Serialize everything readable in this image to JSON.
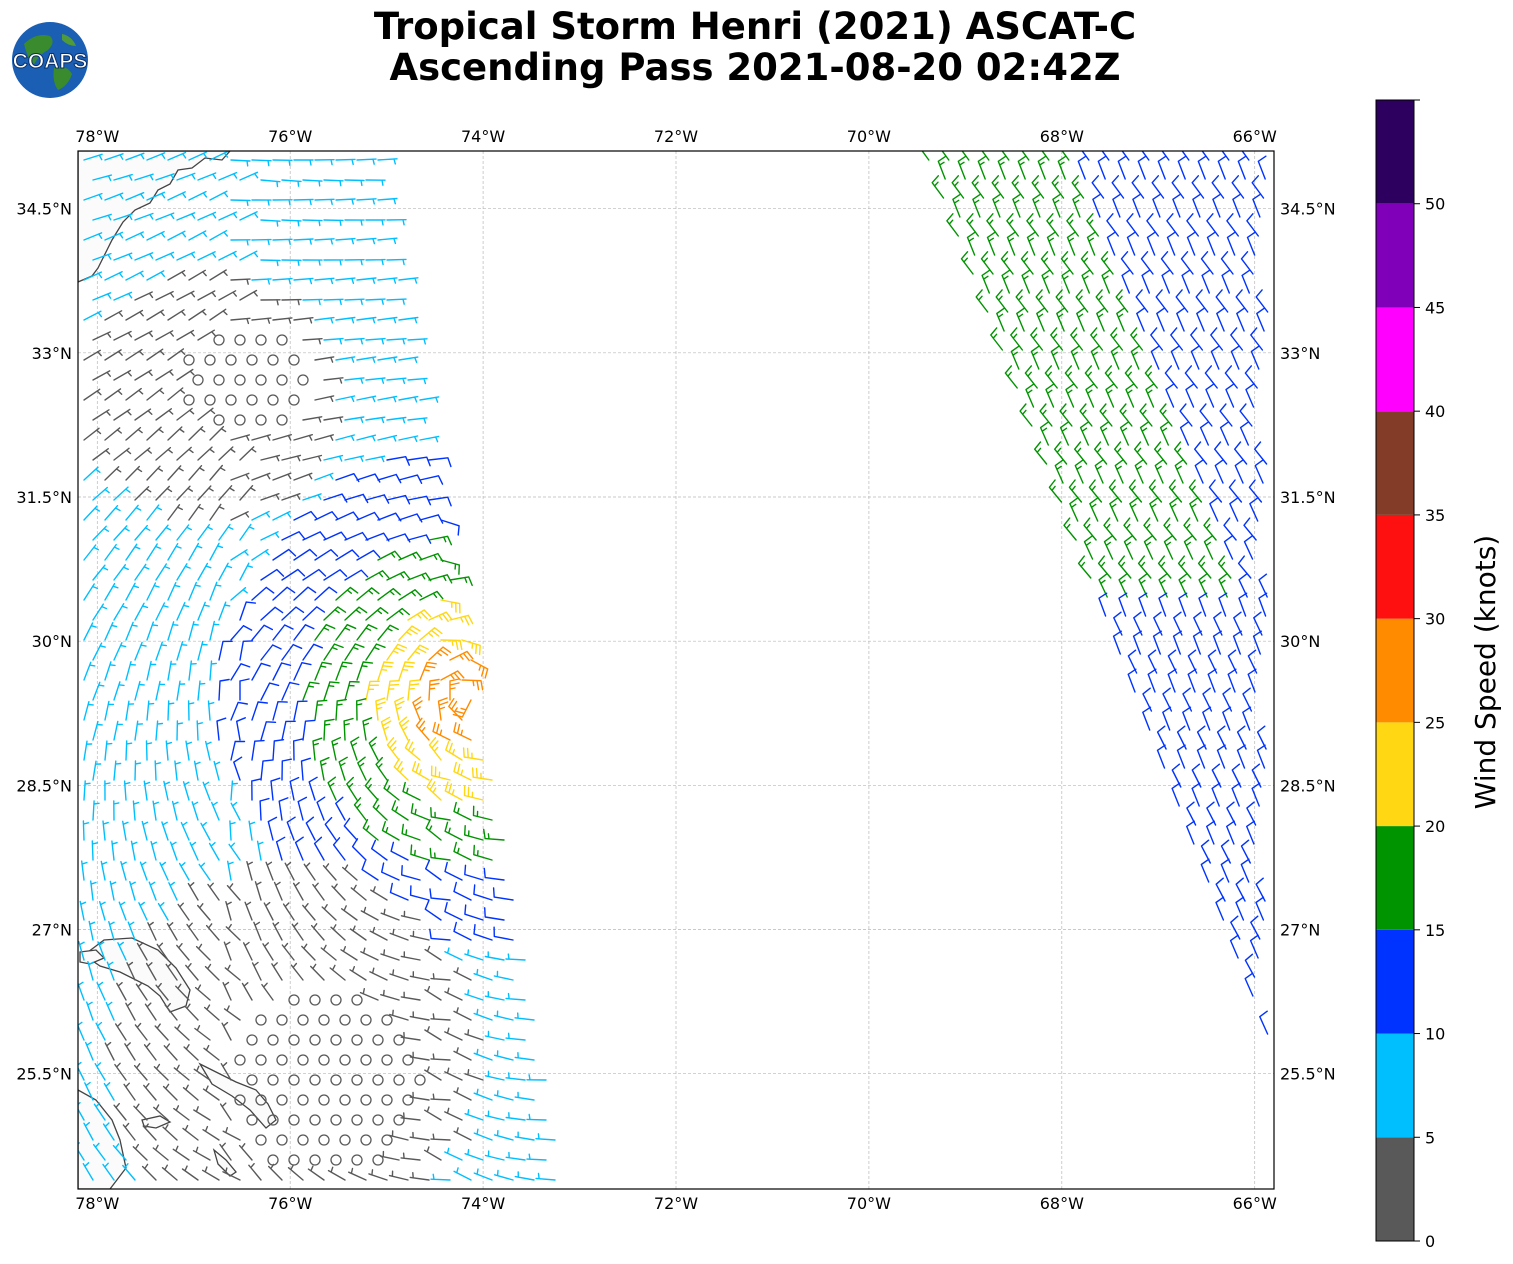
{
  "title": {
    "line1": "Tropical Storm Henri (2021) ASCAT-C",
    "line2": "Ascending Pass 2021-08-20 02:42Z"
  },
  "logo": {
    "text": "COAPS"
  },
  "map": {
    "lon_range": [
      -78.2,
      -65.8
    ],
    "lat_range": [
      24.3,
      35.1
    ],
    "lon_ticks": [
      "78°W",
      "76°W",
      "74°W",
      "72°W",
      "70°W",
      "68°W",
      "66°W"
    ],
    "lat_ticks": [
      "34.5°N",
      "33°N",
      "31.5°N",
      "30°N",
      "28.5°N",
      "27°N",
      "25.5°N"
    ],
    "gridlines": true
  },
  "colorbar": {
    "label": "Wind Speed (knots)",
    "ticks": [
      "0",
      "5",
      "10",
      "15",
      "20",
      "25",
      "30",
      "35",
      "40",
      "45",
      "50"
    ],
    "bins": [
      {
        "min": 0,
        "max": 5,
        "color": "#595959"
      },
      {
        "min": 5,
        "max": 10,
        "color": "#00bfff"
      },
      {
        "min": 10,
        "max": 15,
        "color": "#0033ff"
      },
      {
        "min": 15,
        "max": 20,
        "color": "#009400"
      },
      {
        "min": 20,
        "max": 25,
        "color": "#ffd713"
      },
      {
        "min": 25,
        "max": 30,
        "color": "#ff8c00"
      },
      {
        "min": 30,
        "max": 35,
        "color": "#ff1010"
      },
      {
        "min": 35,
        "max": 40,
        "color": "#823c28"
      },
      {
        "min": 40,
        "max": 45,
        "color": "#ff00ff"
      },
      {
        "min": 45,
        "max": 50,
        "color": "#8000ba"
      },
      {
        "min": 50,
        "max": 55,
        "color": "#2d0060"
      }
    ]
  }
}
